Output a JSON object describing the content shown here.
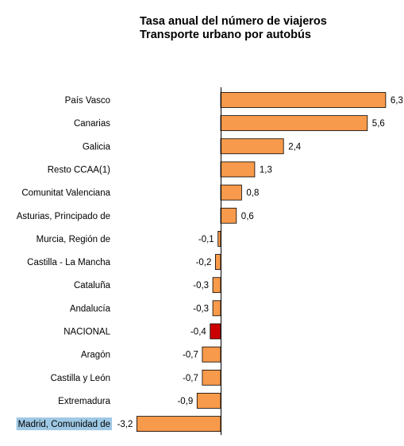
{
  "chart_data": {
    "type": "bar",
    "orientation": "horizontal",
    "title": "Tasa anual del número de viajeros",
    "subtitle": "Transporte urbano por autobús",
    "categories": [
      "País Vasco",
      "Canarias",
      "Galicia",
      "Resto CCAA(1)",
      "Comunitat Valenciana",
      "Asturias, Principado de",
      "Murcia, Región de",
      "Castilla - La Mancha",
      "Cataluña",
      "Andalucía",
      "NACIONAL",
      "Aragón",
      "Castilla y León",
      "Extremadura",
      "Madrid, Comunidad de"
    ],
    "values": [
      6.3,
      5.6,
      2.4,
      1.3,
      0.8,
      0.6,
      -0.1,
      -0.2,
      -0.3,
      -0.3,
      -0.4,
      -0.7,
      -0.7,
      -0.9,
      -3.2
    ],
    "value_labels": [
      "6,3",
      "5,6",
      "2,4",
      "1,3",
      "0,8",
      "0,6",
      "-0,1",
      "-0,2",
      "-0,3",
      "-0,3",
      "-0,4",
      "-0,7",
      "-0,7",
      "-0,9",
      "-3,2"
    ],
    "xlim": [
      -3.4,
      6.3
    ],
    "grid": false,
    "highlight_bar": "NACIONAL",
    "highlight_label": "Madrid, Comunidad de",
    "colors": {
      "bar": "#f89a4b",
      "bar_border": "#000000",
      "highlight_bar": "#cc0000",
      "highlight_label_bg": "#9ec8e4"
    }
  }
}
